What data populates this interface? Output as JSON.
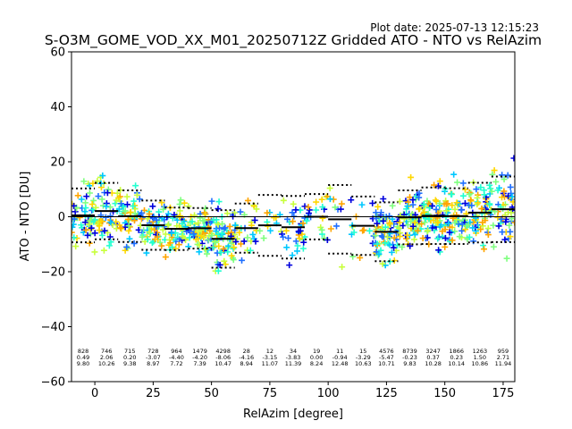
{
  "plot_date": "Plot date: 2025-07-13 12:15:23",
  "chart_data": {
    "type": "scatter",
    "title": "S-O3M_GOME_VOD_XX_M01_20250712Z Gridded ATO - NTO vs RelAzim",
    "xlabel": "RelAzim [degree]",
    "ylabel": "ATO - NTO [DU]",
    "xlim": [
      -10,
      180
    ],
    "ylim": [
      -60,
      60
    ],
    "x_ticks": [
      0,
      25,
      50,
      75,
      100,
      125,
      150,
      175
    ],
    "y_ticks": [
      -60,
      -40,
      -20,
      0,
      20,
      40,
      60
    ],
    "grid": false,
    "zero_line": true,
    "point_colors": [
      "#0000dd",
      "#1f6fff",
      "#00c8ff",
      "#22ffd0",
      "#7fff7f",
      "#c8ff3c",
      "#ffd700",
      "#ffa500"
    ],
    "bins": [
      {
        "x_start": -10,
        "x_end": 0,
        "count": "828",
        "mean": "0.49",
        "std": "9.80"
      },
      {
        "x_start": 0,
        "x_end": 10,
        "count": "746",
        "mean": "2.06",
        "std": "10.26"
      },
      {
        "x_start": 10,
        "x_end": 20,
        "count": "715",
        "mean": "0.20",
        "std": "9.38"
      },
      {
        "x_start": 20,
        "x_end": 30,
        "count": "728",
        "mean": "-3.07",
        "std": "8.97"
      },
      {
        "x_start": 30,
        "x_end": 40,
        "count": "964",
        "mean": "-4.40",
        "std": "7.72"
      },
      {
        "x_start": 40,
        "x_end": 50,
        "count": "1479",
        "mean": "-4.20",
        "std": "7.39"
      },
      {
        "x_start": 50,
        "x_end": 60,
        "count": "4298",
        "mean": "-8.06",
        "std": "10.47"
      },
      {
        "x_start": 60,
        "x_end": 70,
        "count": "28",
        "mean": "-4.16",
        "std": "8.94"
      },
      {
        "x_start": 70,
        "x_end": 80,
        "count": "12",
        "mean": "-3.15",
        "std": "11.07"
      },
      {
        "x_start": 80,
        "x_end": 90,
        "count": "34",
        "mean": "-3.83",
        "std": "11.39"
      },
      {
        "x_start": 90,
        "x_end": 100,
        "count": "19",
        "mean": "0.00",
        "std": "8.24"
      },
      {
        "x_start": 100,
        "x_end": 110,
        "count": "11",
        "mean": "-0.94",
        "std": "12.48"
      },
      {
        "x_start": 110,
        "x_end": 120,
        "count": "15",
        "mean": "-3.29",
        "std": "10.63"
      },
      {
        "x_start": 120,
        "x_end": 130,
        "count": "4576",
        "mean": "-5.47",
        "std": "10.71"
      },
      {
        "x_start": 130,
        "x_end": 140,
        "count": "8739",
        "mean": "-0.23",
        "std": "9.83"
      },
      {
        "x_start": 140,
        "x_end": 150,
        "count": "3247",
        "mean": "0.37",
        "std": "10.28"
      },
      {
        "x_start": 150,
        "x_end": 160,
        "count": "1866",
        "mean": "0.23",
        "std": "10.14"
      },
      {
        "x_start": 160,
        "x_end": 170,
        "count": "1263",
        "mean": "1.50",
        "std": "10.86"
      },
      {
        "x_start": 170,
        "x_end": 180,
        "count": "959",
        "mean": "2.71",
        "std": "11.94"
      }
    ]
  }
}
